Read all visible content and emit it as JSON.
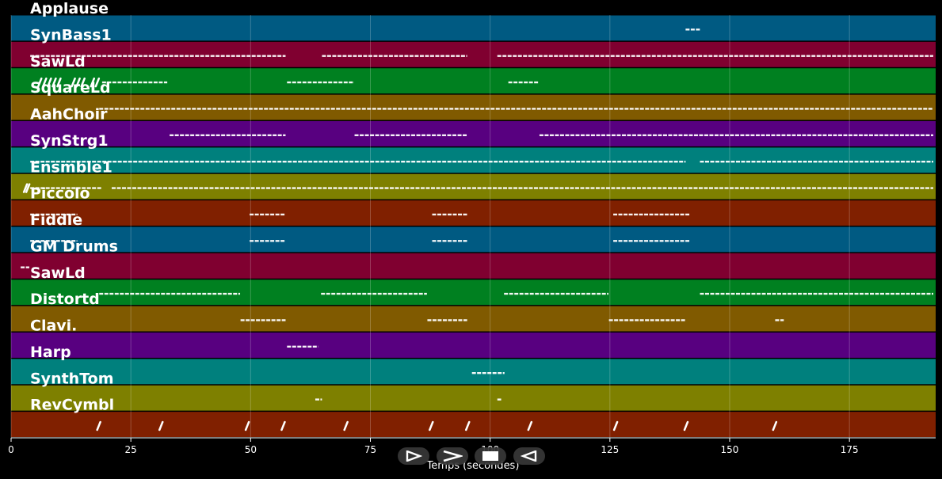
{
  "chart_data": {
    "type": "piano-roll",
    "xlabel": "Temps (secondes)",
    "xlim": [
      0,
      193
    ],
    "xticks": [
      0,
      25,
      50,
      75,
      100,
      125,
      150,
      175
    ],
    "grid": true,
    "tracks": [
      {
        "name": "Applause",
        "color": "#005a82",
        "segments": [
          [
            140.8,
            143.8
          ]
        ],
        "ticks": []
      },
      {
        "name": "SynBass1",
        "color": "#800030",
        "segments": [
          [
            4,
            57.3
          ],
          [
            64.9,
            95.2
          ],
          [
            101.5,
            192.5
          ]
        ],
        "ticks": []
      },
      {
        "name": "SawLd",
        "color": "#008020",
        "segments": [
          [
            19,
            32.6
          ],
          [
            57.6,
            71.6
          ],
          [
            103.8,
            110.1
          ]
        ],
        "ticks": [
          6,
          7,
          8,
          9,
          10,
          13,
          14,
          15,
          17,
          18
        ]
      },
      {
        "name": "SquareLd",
        "color": "#805a00",
        "segments": [
          [
            18.4,
            192.5
          ]
        ],
        "ticks": []
      },
      {
        "name": "AahChoir",
        "color": "#580080",
        "segments": [
          [
            33.1,
            57.3
          ],
          [
            71.7,
            95.2
          ],
          [
            110.3,
            192.5
          ]
        ],
        "ticks": []
      },
      {
        "name": "SynStrg1",
        "color": "#00807d",
        "segments": [
          [
            4,
            140.8
          ],
          [
            143.8,
            192.5
          ]
        ],
        "ticks": []
      },
      {
        "name": "Ensmble1",
        "color": "#7e8000",
        "segments": [
          [
            4,
            19
          ],
          [
            21,
            192.5
          ]
        ],
        "ticks": [
          3,
          3.5
        ]
      },
      {
        "name": "Piccolo",
        "color": "#802000",
        "segments": [
          [
            4,
            13.8
          ],
          [
            49.8,
            57.3
          ],
          [
            87.9,
            95.2
          ],
          [
            125.7,
            141.6
          ]
        ],
        "ticks": []
      },
      {
        "name": "Fiddle",
        "color": "#005a82",
        "segments": [
          [
            4,
            13.8
          ],
          [
            49.8,
            57.3
          ],
          [
            87.9,
            95.2
          ],
          [
            125.7,
            141.6
          ]
        ],
        "ticks": []
      },
      {
        "name": "GM Drums",
        "color": "#800030",
        "segments": [
          [
            2,
            3.8
          ]
        ],
        "ticks": []
      },
      {
        "name": "SawLd",
        "color": "#008020",
        "segments": [
          [
            18.4,
            47.8
          ],
          [
            64.7,
            86.8
          ],
          [
            102.9,
            124.7
          ],
          [
            143.8,
            192.5
          ]
        ],
        "ticks": []
      },
      {
        "name": "Distortd",
        "color": "#805a00",
        "segments": [
          [
            47.9,
            57.3
          ],
          [
            86.9,
            95.2
          ],
          [
            124.8,
            140.8
          ],
          [
            159.5,
            161.3
          ]
        ],
        "ticks": []
      },
      {
        "name": "Clavi.",
        "color": "#580080",
        "segments": [
          [
            57.6,
            64.1
          ]
        ],
        "ticks": []
      },
      {
        "name": "Harp",
        "color": "#00807d",
        "segments": [
          [
            96.2,
            103
          ]
        ],
        "ticks": []
      },
      {
        "name": "SynthTom",
        "color": "#7e8000",
        "segments": [
          [
            63.5,
            64.9
          ],
          [
            101.5,
            102.3
          ]
        ],
        "ticks": []
      },
      {
        "name": "RevCymbl",
        "color": "#802000",
        "segments": [],
        "ticks": [
          18.3,
          31.3,
          49.3,
          56.8,
          69.9,
          87.7,
          95.3,
          108.3,
          126.2,
          140.9,
          159.4
        ]
      }
    ]
  },
  "controls": [
    {
      "name": "play-backward-button",
      "icon": "play-backward-icon"
    },
    {
      "name": "play-forward-button",
      "icon": "play-forward-icon"
    },
    {
      "name": "stop-button",
      "icon": "stop-icon"
    },
    {
      "name": "rewind-button",
      "icon": "rewind-icon"
    }
  ]
}
